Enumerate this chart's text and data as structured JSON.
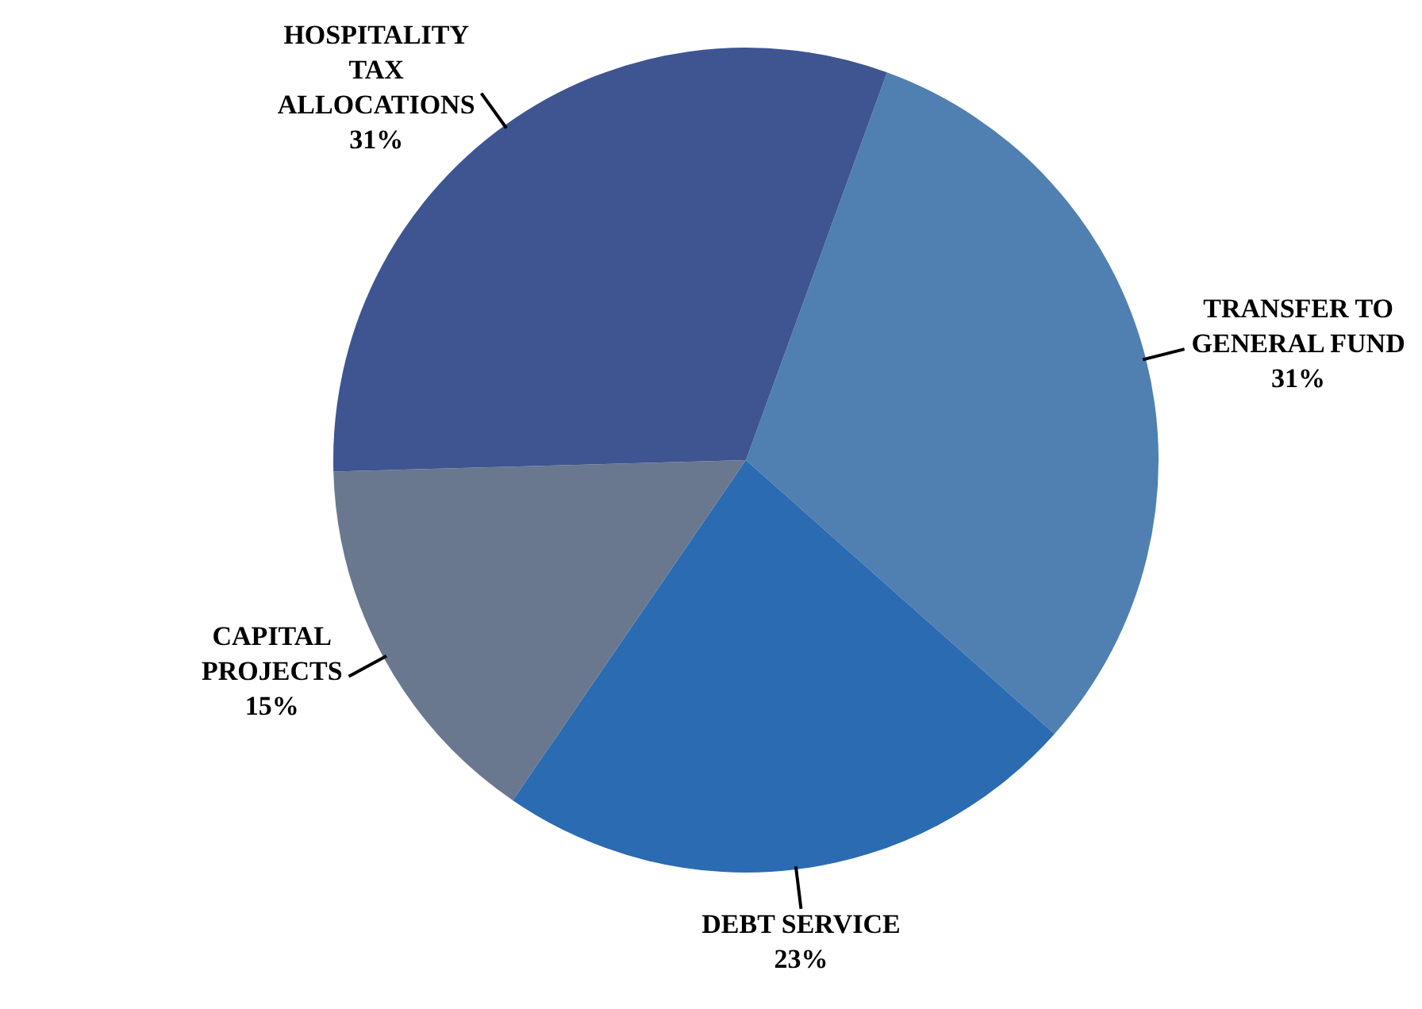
{
  "chart_data": {
    "type": "pie",
    "categories": [
      "TRANSFER TO GENERAL FUND",
      "DEBT SERVICE",
      "CAPITAL PROJECTS",
      "HOSPITALITY TAX ALLOCATIONS"
    ],
    "values": [
      31,
      23,
      15,
      31
    ],
    "value_labels": [
      "31%",
      "23%",
      "15%",
      "31%"
    ],
    "colors": [
      "#4f80b1",
      "#2a6bb1",
      "#69788e",
      "#3e5591"
    ],
    "legend": false
  }
}
